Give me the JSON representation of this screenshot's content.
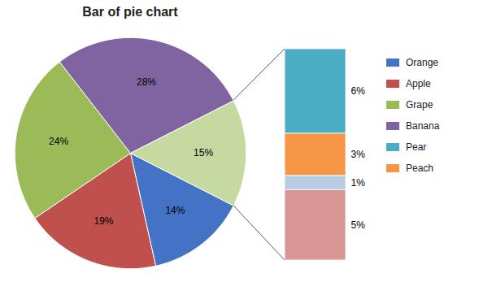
{
  "chart_data": [
    {
      "type": "pie",
      "title": "Bar of pie chart",
      "categories": [
        "Orange",
        "Apple",
        "Grape",
        "Banana",
        null
      ],
      "values": [
        14,
        19,
        24,
        28,
        15
      ],
      "value_labels": [
        "14%",
        "19%",
        "24%",
        "28%",
        "15%"
      ],
      "colors": [
        "#4472C4",
        "#C0504D",
        "#9BBB59",
        "#8064A2",
        "#C6D9A0"
      ],
      "data_labels": true,
      "legend": "right"
    },
    {
      "type": "bar",
      "stacked": true,
      "categories": [
        "Pear",
        "Peach",
        null,
        null
      ],
      "values": [
        6,
        3,
        1,
        5
      ],
      "value_labels": [
        "6%",
        "3%",
        "1%",
        "5%"
      ],
      "colors": [
        "#4BACC6",
        "#F79646",
        "#B8CCE4",
        "#D99694"
      ],
      "ylim": [
        0,
        15
      ],
      "tick_labels": false,
      "data_labels": true,
      "legend": "right"
    }
  ]
}
